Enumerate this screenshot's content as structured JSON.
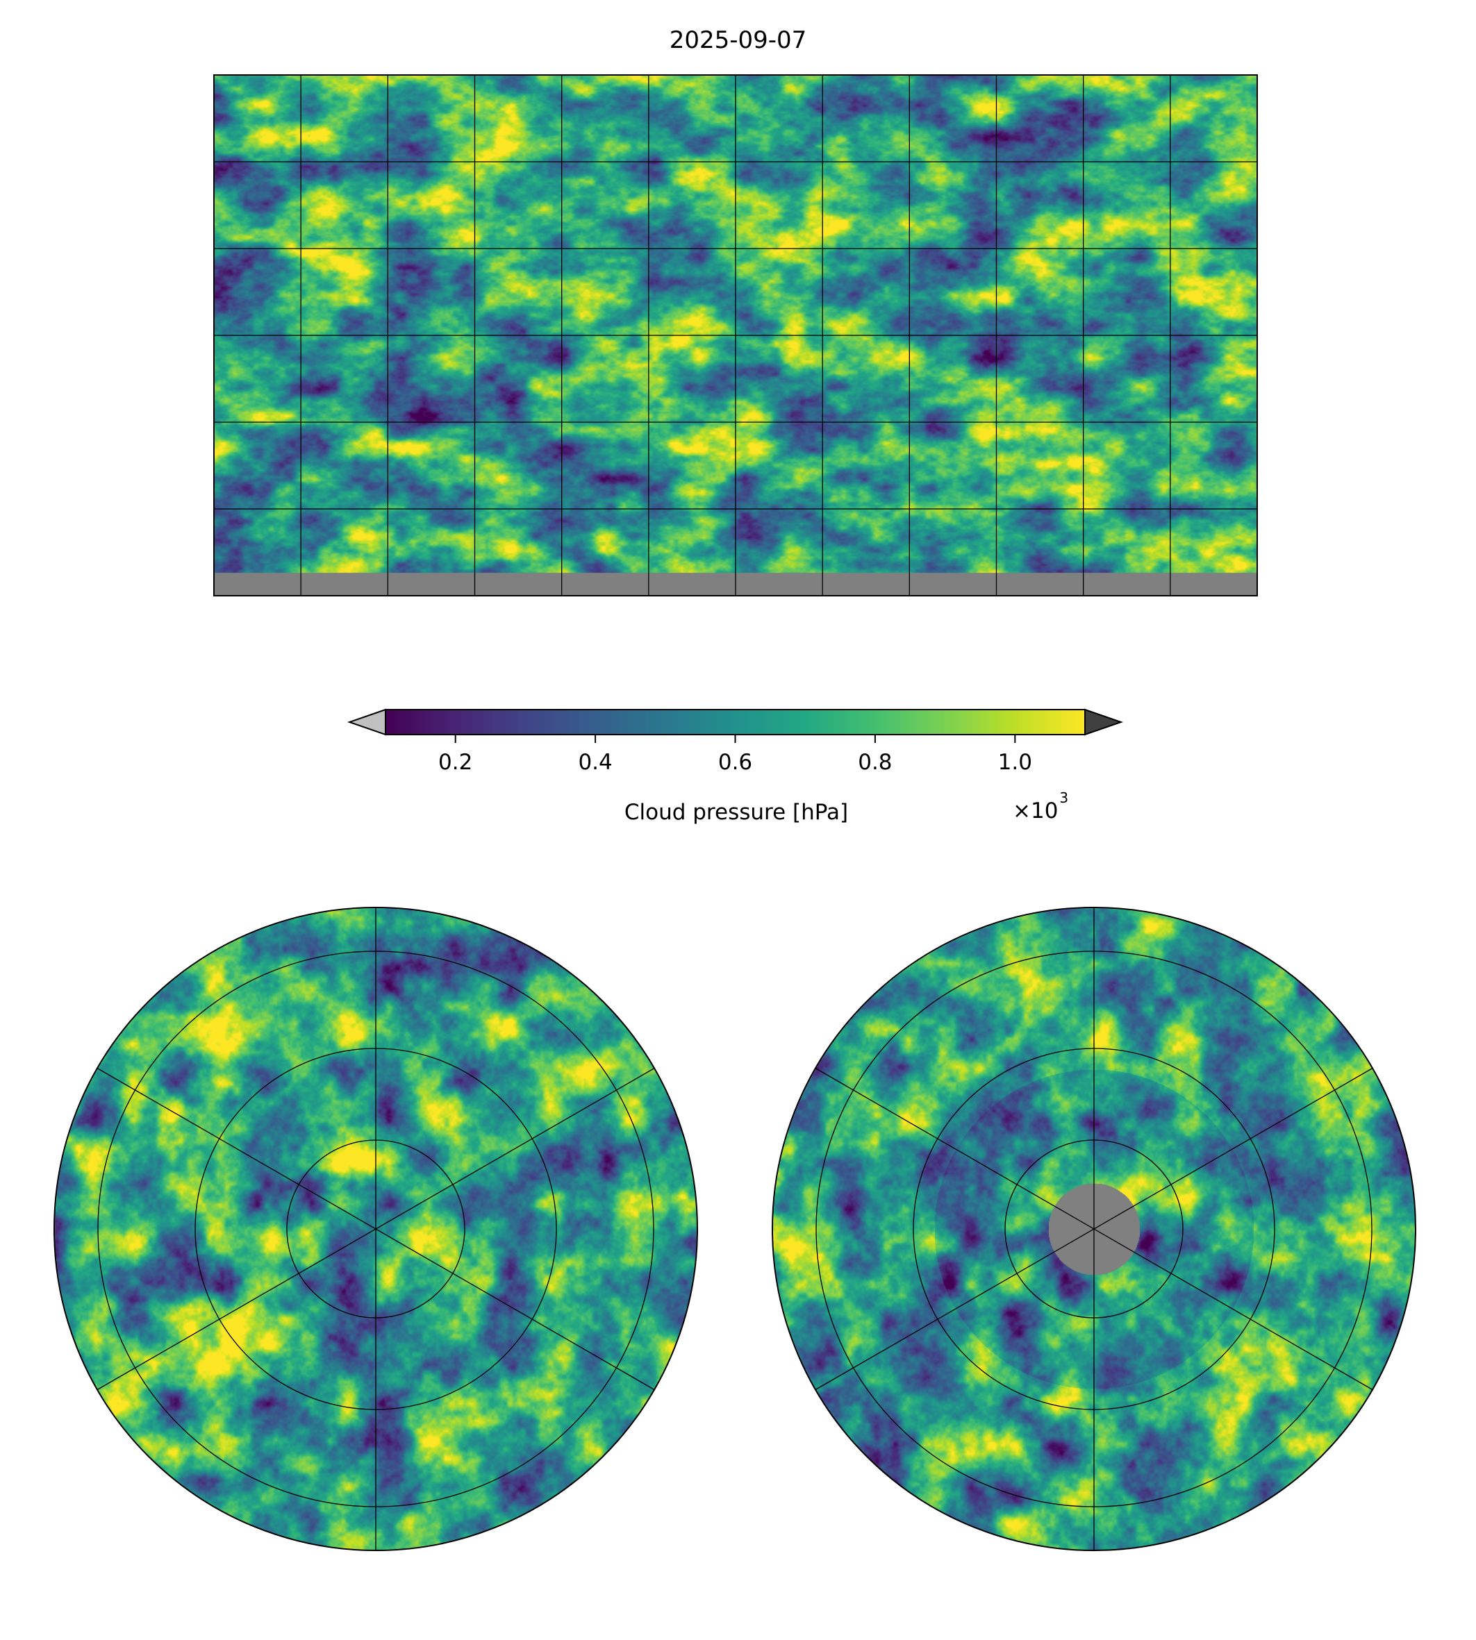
{
  "chart_data": {
    "type": "heatmap",
    "title": "2025-09-07",
    "colormap": "viridis",
    "vmin": 0.1,
    "vmax": 1.1,
    "extend": "both",
    "under_color": "#c0c0c0",
    "over_color": "#404040",
    "missing_color": "#808080",
    "colorbar": {
      "label": "Cloud pressure [hPa]",
      "ticks": [
        "0.2",
        "0.4",
        "0.6",
        "0.8",
        "1.0"
      ],
      "tick_values": [
        0.2,
        0.4,
        0.6,
        0.8,
        1.0
      ],
      "offset_text": "×10",
      "offset_exp": "3"
    },
    "gridlines": {
      "lon_step_deg": 30,
      "lat_step_deg": 30
    }
  }
}
